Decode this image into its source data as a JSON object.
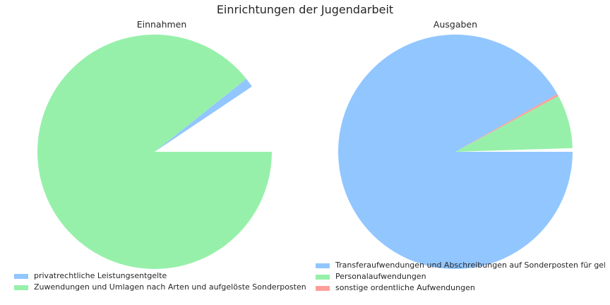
{
  "title": "Einrichtungen der Jugendarbeit",
  "colors": {
    "blue": "#92c6ff",
    "green": "#97f0aa",
    "red": "#ff9f9a"
  },
  "chart_data": [
    {
      "type": "pie",
      "title": "Einnahmen",
      "start_angle_deg": 0,
      "direction": "counterclockwise",
      "slices": [
        {
          "label": "",
          "value": 0.094,
          "color": "#ffffff"
        },
        {
          "label": "privatrechtliche Leistungsentgelte",
          "value": 0.013,
          "color": "#92c6ff"
        },
        {
          "label": "Zuwendungen und Umlagen nach Arten und aufgelöste Sonderposten",
          "value": 0.893,
          "color": "#97f0aa"
        }
      ],
      "legend": [
        "privatrechtliche Leistungsentgelte",
        "Zuwendungen und Umlagen nach Arten und aufgelöste Sonderposten"
      ],
      "legend_position": "bottom-left"
    },
    {
      "type": "pie",
      "title": "Ausgaben",
      "start_angle_deg": 0,
      "direction": "counterclockwise",
      "slices": [
        {
          "label": "Transferaufwendungen und Abschreibungen auf Sonderposten für geleiste",
          "value": 0.005,
          "color": "#ffffff"
        },
        {
          "label": "Personalaufwendungen",
          "value": 0.074,
          "color": "#97f0aa"
        },
        {
          "label": "sonstige ordentliche Aufwendungen",
          "value": 0.003,
          "color": "#ff9f9a"
        },
        {
          "label": "Transferaufwendungen und Abschreibungen auf Sonderposten für geleiste",
          "value": 0.918,
          "color": "#92c6ff"
        }
      ],
      "legend": [
        "Transferaufwendungen und Abschreibungen auf Sonderposten für geleiste",
        "Personalaufwendungen",
        "sonstige ordentliche Aufwendungen"
      ],
      "legend_position": "bottom"
    }
  ]
}
